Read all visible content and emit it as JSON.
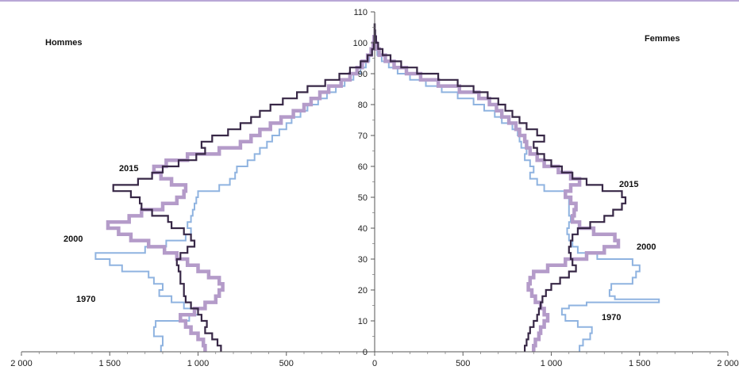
{
  "chart_data": {
    "type": "line",
    "subtype": "population-pyramid",
    "title": "",
    "panels": {
      "left": "Hommes",
      "right": "Femmes"
    },
    "x_axis": {
      "range": [
        -2000,
        2000
      ],
      "ticks": [
        -2000,
        -1500,
        -1000,
        -500,
        0,
        500,
        1000,
        1500,
        2000
      ],
      "tick_labels": [
        "2 000",
        "1 500",
        "1 000",
        "500",
        "0",
        "500",
        "1 000",
        "1 500",
        "2 000"
      ]
    },
    "y_axis": {
      "range": [
        0,
        110
      ],
      "ticks": [
        0,
        10,
        20,
        30,
        40,
        50,
        60,
        70,
        80,
        90,
        100,
        110
      ],
      "tick_labels": [
        "0",
        "10",
        "20",
        "30",
        "40",
        "50",
        "60",
        "70",
        "80",
        "90",
        "100",
        "110"
      ]
    },
    "grid": false,
    "colors": {
      "1970": "#8fb3e0",
      "2000": "#b49bc9",
      "2015": "#372746"
    },
    "series": [
      {
        "name": "1970",
        "color": "#8fb3e0",
        "men": [
          [
            0,
            1210
          ],
          [
            2,
            1200
          ],
          [
            5,
            1250
          ],
          [
            8,
            1240
          ],
          [
            10,
            1050
          ],
          [
            12,
            1000
          ],
          [
            14,
            1080
          ],
          [
            16,
            1150
          ],
          [
            18,
            1220
          ],
          [
            20,
            1200
          ],
          [
            22,
            1250
          ],
          [
            24,
            1280
          ],
          [
            26,
            1430
          ],
          [
            28,
            1500
          ],
          [
            30,
            1580
          ],
          [
            32,
            1300
          ],
          [
            34,
            1180
          ],
          [
            36,
            1070
          ],
          [
            38,
            1040
          ],
          [
            40,
            1060
          ],
          [
            42,
            1040
          ],
          [
            44,
            1030
          ],
          [
            46,
            1020
          ],
          [
            48,
            1010
          ],
          [
            50,
            1000
          ],
          [
            52,
            880
          ],
          [
            54,
            820
          ],
          [
            56,
            790
          ],
          [
            58,
            780
          ],
          [
            60,
            720
          ],
          [
            62,
            680
          ],
          [
            64,
            650
          ],
          [
            66,
            610
          ],
          [
            68,
            580
          ],
          [
            70,
            540
          ],
          [
            72,
            500
          ],
          [
            74,
            470
          ],
          [
            76,
            420
          ],
          [
            78,
            380
          ],
          [
            80,
            320
          ],
          [
            82,
            270
          ],
          [
            84,
            220
          ],
          [
            86,
            170
          ],
          [
            88,
            120
          ],
          [
            90,
            80
          ],
          [
            92,
            50
          ],
          [
            94,
            30
          ],
          [
            96,
            15
          ],
          [
            98,
            5
          ],
          [
            100,
            2
          ]
        ],
        "women": [
          [
            0,
            1160
          ],
          [
            2,
            1180
          ],
          [
            4,
            1220
          ],
          [
            6,
            1230
          ],
          [
            8,
            1150
          ],
          [
            10,
            1080
          ],
          [
            12,
            1060
          ],
          [
            14,
            1100
          ],
          [
            15,
            1200
          ],
          [
            16,
            1610
          ],
          [
            17,
            1360
          ],
          [
            18,
            1330
          ],
          [
            20,
            1340
          ],
          [
            22,
            1460
          ],
          [
            24,
            1480
          ],
          [
            26,
            1500
          ],
          [
            28,
            1460
          ],
          [
            30,
            1260
          ],
          [
            32,
            1150
          ],
          [
            34,
            1120
          ],
          [
            36,
            1100
          ],
          [
            38,
            1090
          ],
          [
            40,
            1100
          ],
          [
            42,
            1110
          ],
          [
            44,
            1100
          ],
          [
            46,
            1100
          ],
          [
            48,
            1100
          ],
          [
            50,
            1080
          ],
          [
            52,
            960
          ],
          [
            54,
            920
          ],
          [
            56,
            880
          ],
          [
            58,
            900
          ],
          [
            60,
            880
          ],
          [
            62,
            850
          ],
          [
            64,
            860
          ],
          [
            66,
            830
          ],
          [
            68,
            820
          ],
          [
            70,
            810
          ],
          [
            72,
            780
          ],
          [
            74,
            720
          ],
          [
            76,
            680
          ],
          [
            78,
            620
          ],
          [
            80,
            560
          ],
          [
            82,
            470
          ],
          [
            84,
            380
          ],
          [
            86,
            290
          ],
          [
            88,
            200
          ],
          [
            90,
            130
          ],
          [
            92,
            80
          ],
          [
            94,
            40
          ],
          [
            96,
            15
          ],
          [
            98,
            5
          ],
          [
            100,
            2
          ]
        ]
      },
      {
        "name": "2000",
        "color": "#b49bc9",
        "men": [
          [
            0,
            960
          ],
          [
            2,
            970
          ],
          [
            4,
            1000
          ],
          [
            6,
            1040
          ],
          [
            8,
            1070
          ],
          [
            10,
            1100
          ],
          [
            12,
            1020
          ],
          [
            14,
            960
          ],
          [
            16,
            900
          ],
          [
            18,
            880
          ],
          [
            20,
            860
          ],
          [
            22,
            880
          ],
          [
            24,
            940
          ],
          [
            26,
            1000
          ],
          [
            28,
            1060
          ],
          [
            30,
            1120
          ],
          [
            32,
            1190
          ],
          [
            34,
            1280
          ],
          [
            36,
            1380
          ],
          [
            38,
            1450
          ],
          [
            40,
            1510
          ],
          [
            42,
            1390
          ],
          [
            44,
            1320
          ],
          [
            46,
            1200
          ],
          [
            48,
            1120
          ],
          [
            50,
            1080
          ],
          [
            52,
            1070
          ],
          [
            54,
            1150
          ],
          [
            56,
            1210
          ],
          [
            58,
            1250
          ],
          [
            60,
            1180
          ],
          [
            62,
            1060
          ],
          [
            64,
            880
          ],
          [
            66,
            760
          ],
          [
            68,
            700
          ],
          [
            70,
            650
          ],
          [
            72,
            590
          ],
          [
            74,
            530
          ],
          [
            76,
            460
          ],
          [
            78,
            400
          ],
          [
            80,
            360
          ],
          [
            82,
            310
          ],
          [
            84,
            260
          ],
          [
            86,
            190
          ],
          [
            88,
            140
          ],
          [
            90,
            100
          ],
          [
            92,
            70
          ],
          [
            94,
            40
          ],
          [
            96,
            20
          ],
          [
            98,
            8
          ],
          [
            100,
            3
          ]
        ],
        "women": [
          [
            0,
            900
          ],
          [
            2,
            910
          ],
          [
            4,
            930
          ],
          [
            6,
            940
          ],
          [
            8,
            960
          ],
          [
            10,
            980
          ],
          [
            12,
            960
          ],
          [
            14,
            940
          ],
          [
            16,
            910
          ],
          [
            18,
            890
          ],
          [
            20,
            870
          ],
          [
            22,
            880
          ],
          [
            24,
            900
          ],
          [
            26,
            980
          ],
          [
            28,
            1080
          ],
          [
            30,
            1200
          ],
          [
            32,
            1300
          ],
          [
            34,
            1380
          ],
          [
            36,
            1360
          ],
          [
            38,
            1240
          ],
          [
            40,
            1160
          ],
          [
            42,
            1120
          ],
          [
            44,
            1130
          ],
          [
            46,
            1140
          ],
          [
            48,
            1110
          ],
          [
            50,
            1080
          ],
          [
            52,
            1110
          ],
          [
            54,
            1160
          ],
          [
            56,
            1110
          ],
          [
            58,
            1040
          ],
          [
            60,
            960
          ],
          [
            62,
            920
          ],
          [
            64,
            880
          ],
          [
            66,
            860
          ],
          [
            68,
            850
          ],
          [
            70,
            820
          ],
          [
            72,
            800
          ],
          [
            74,
            760
          ],
          [
            76,
            720
          ],
          [
            78,
            690
          ],
          [
            80,
            650
          ],
          [
            82,
            590
          ],
          [
            84,
            480
          ],
          [
            86,
            360
          ],
          [
            88,
            260
          ],
          [
            90,
            180
          ],
          [
            92,
            110
          ],
          [
            94,
            60
          ],
          [
            96,
            25
          ],
          [
            98,
            10
          ],
          [
            100,
            3
          ]
        ]
      },
      {
        "name": "2015",
        "color": "#372746",
        "men": [
          [
            0,
            870
          ],
          [
            2,
            890
          ],
          [
            4,
            920
          ],
          [
            6,
            960
          ],
          [
            8,
            950
          ],
          [
            10,
            980
          ],
          [
            12,
            1000
          ],
          [
            14,
            1040
          ],
          [
            16,
            1070
          ],
          [
            18,
            1080
          ],
          [
            20,
            1080
          ],
          [
            22,
            1100
          ],
          [
            24,
            1100
          ],
          [
            26,
            1110
          ],
          [
            28,
            1120
          ],
          [
            30,
            1100
          ],
          [
            32,
            1060
          ],
          [
            34,
            1020
          ],
          [
            36,
            1040
          ],
          [
            38,
            1080
          ],
          [
            40,
            1150
          ],
          [
            42,
            1170
          ],
          [
            44,
            1260
          ],
          [
            46,
            1320
          ],
          [
            48,
            1330
          ],
          [
            50,
            1380
          ],
          [
            52,
            1480
          ],
          [
            54,
            1340
          ],
          [
            56,
            1260
          ],
          [
            58,
            1200
          ],
          [
            60,
            1110
          ],
          [
            62,
            1010
          ],
          [
            64,
            960
          ],
          [
            66,
            980
          ],
          [
            68,
            920
          ],
          [
            70,
            830
          ],
          [
            72,
            760
          ],
          [
            74,
            700
          ],
          [
            76,
            650
          ],
          [
            78,
            590
          ],
          [
            80,
            520
          ],
          [
            82,
            440
          ],
          [
            84,
            380
          ],
          [
            86,
            280
          ],
          [
            88,
            200
          ],
          [
            90,
            140
          ],
          [
            92,
            80
          ],
          [
            94,
            40
          ],
          [
            96,
            15
          ],
          [
            98,
            5
          ],
          [
            100,
            2
          ],
          [
            102,
            1
          ],
          [
            104,
            1
          ]
        ],
        "women": [
          [
            0,
            850
          ],
          [
            2,
            860
          ],
          [
            4,
            870
          ],
          [
            6,
            880
          ],
          [
            8,
            900
          ],
          [
            10,
            920
          ],
          [
            12,
            930
          ],
          [
            14,
            940
          ],
          [
            16,
            950
          ],
          [
            18,
            970
          ],
          [
            20,
            1000
          ],
          [
            22,
            1050
          ],
          [
            24,
            1100
          ],
          [
            26,
            1140
          ],
          [
            28,
            1120
          ],
          [
            30,
            1110
          ],
          [
            32,
            1100
          ],
          [
            34,
            1110
          ],
          [
            36,
            1120
          ],
          [
            38,
            1150
          ],
          [
            40,
            1220
          ],
          [
            42,
            1300
          ],
          [
            44,
            1350
          ],
          [
            46,
            1400
          ],
          [
            48,
            1420
          ],
          [
            50,
            1400
          ],
          [
            52,
            1290
          ],
          [
            54,
            1200
          ],
          [
            56,
            1120
          ],
          [
            58,
            1060
          ],
          [
            60,
            1000
          ],
          [
            62,
            960
          ],
          [
            64,
            920
          ],
          [
            66,
            900
          ],
          [
            68,
            960
          ],
          [
            70,
            920
          ],
          [
            72,
            860
          ],
          [
            74,
            820
          ],
          [
            76,
            780
          ],
          [
            78,
            740
          ],
          [
            80,
            700
          ],
          [
            82,
            640
          ],
          [
            84,
            560
          ],
          [
            86,
            470
          ],
          [
            88,
            360
          ],
          [
            90,
            240
          ],
          [
            92,
            150
          ],
          [
            94,
            90
          ],
          [
            96,
            45
          ],
          [
            98,
            20
          ],
          [
            100,
            8
          ],
          [
            102,
            3
          ],
          [
            104,
            1
          ]
        ]
      }
    ],
    "annotations": [
      {
        "text": "2015",
        "side": "men",
        "age": 61
      },
      {
        "text": "2000",
        "side": "men",
        "age": 37
      },
      {
        "text": "1970",
        "side": "men",
        "age": 17
      },
      {
        "text": "2015",
        "side": "women",
        "age": 54
      },
      {
        "text": "2000",
        "side": "women",
        "age": 34
      },
      {
        "text": "1970",
        "side": "women",
        "age": 11
      }
    ]
  }
}
